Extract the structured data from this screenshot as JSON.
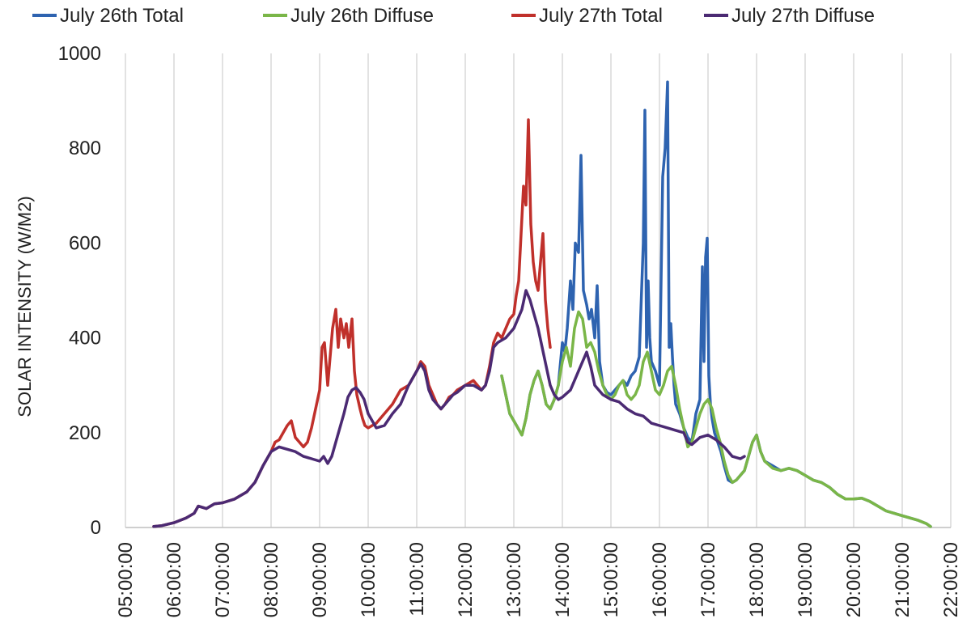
{
  "chart_data": {
    "type": "line",
    "title": "",
    "xlabel": "",
    "ylabel": "SOLAR INTENSITY (W/M2)",
    "ylim": [
      0,
      1000
    ],
    "yticks": [
      0,
      200,
      400,
      600,
      800,
      1000
    ],
    "xlim": [
      "05:00:00",
      "22:00:00"
    ],
    "xticks": [
      "05:00:00",
      "06:00:00",
      "07:00:00",
      "08:00:00",
      "09:00:00",
      "10:00:00",
      "11:00:00",
      "12:00:00",
      "13:00:00",
      "14:00:00",
      "15:00:00",
      "16:00:00",
      "17:00:00",
      "18:00:00",
      "19:00:00",
      "20:00:00",
      "21:00:00",
      "22:00:00"
    ],
    "grid": "vertical",
    "legend_position": "top",
    "series": [
      {
        "name": "July 26th Total",
        "color": "#2e63b0",
        "x": [
          "12:45:00",
          "12:50:00",
          "12:55:00",
          "13:00:00",
          "13:05:00",
          "13:10:00",
          "13:15:00",
          "13:20:00",
          "13:25:00",
          "13:30:00",
          "13:35:00",
          "13:40:00",
          "13:45:00",
          "13:50:00",
          "13:55:00",
          "14:00:00",
          "14:03:00",
          "14:06:00",
          "14:10:00",
          "14:13:00",
          "14:16:00",
          "14:20:00",
          "14:23:00",
          "14:26:00",
          "14:30:00",
          "14:33:00",
          "14:36:00",
          "14:40:00",
          "14:43:00",
          "14:46:00",
          "14:50:00",
          "14:55:00",
          "15:00:00",
          "15:05:00",
          "15:10:00",
          "15:15:00",
          "15:20:00",
          "15:25:00",
          "15:30:00",
          "15:35:00",
          "15:40:00",
          "15:42:00",
          "15:44:00",
          "15:46:00",
          "15:48:00",
          "15:50:00",
          "15:55:00",
          "16:00:00",
          "16:04:00",
          "16:07:00",
          "16:10:00",
          "16:12:00",
          "16:14:00",
          "16:16:00",
          "16:18:00",
          "16:20:00",
          "16:25:00",
          "16:30:00",
          "16:35:00",
          "16:40:00",
          "16:45:00",
          "16:50:00",
          "16:53:00",
          "16:55:00",
          "16:57:00",
          "16:59:00",
          "17:01:00",
          "17:03:00",
          "17:05:00",
          "17:08:00",
          "17:12:00",
          "17:16:00",
          "17:20:00",
          "17:25:00",
          "17:30:00",
          "17:35:00",
          "17:40:00",
          "17:45:00",
          "17:50:00",
          "17:55:00",
          "18:00:00",
          "18:05:00",
          "18:10:00",
          "18:20:00",
          "18:30:00",
          "18:40:00",
          "18:50:00",
          "19:00:00",
          "19:10:00",
          "19:20:00",
          "19:30:00",
          "19:40:00",
          "19:50:00",
          "20:00:00",
          "20:10:00",
          "20:20:00",
          "20:30:00",
          "20:40:00",
          "20:50:00",
          "21:00:00",
          "21:10:00",
          "21:20:00",
          "21:30:00",
          "21:35:00"
        ],
        "values": [
          320,
          280,
          240,
          225,
          210,
          195,
          230,
          280,
          310,
          330,
          300,
          260,
          250,
          270,
          300,
          390,
          370,
          420,
          520,
          460,
          600,
          580,
          785,
          500,
          470,
          440,
          460,
          400,
          510,
          350,
          300,
          285,
          280,
          290,
          300,
          310,
          300,
          320,
          330,
          360,
          600,
          880,
          380,
          520,
          400,
          350,
          330,
          300,
          740,
          800,
          940,
          380,
          430,
          360,
          300,
          260,
          240,
          210,
          190,
          180,
          240,
          270,
          550,
          350,
          570,
          610,
          320,
          260,
          230,
          200,
          180,
          160,
          130,
          100,
          95,
          100,
          110,
          120,
          150,
          180,
          195,
          160,
          140,
          130,
          120,
          125,
          120,
          110,
          100,
          95,
          85,
          70,
          60,
          60,
          62,
          55,
          45,
          35,
          30,
          25,
          20,
          15,
          8,
          2
        ]
      },
      {
        "name": "July 26th Diffuse",
        "color": "#7ab648",
        "x": [
          "12:45:00",
          "12:50:00",
          "12:55:00",
          "13:00:00",
          "13:05:00",
          "13:10:00",
          "13:15:00",
          "13:20:00",
          "13:25:00",
          "13:30:00",
          "13:35:00",
          "13:40:00",
          "13:45:00",
          "13:50:00",
          "13:55:00",
          "14:00:00",
          "14:05:00",
          "14:10:00",
          "14:15:00",
          "14:20:00",
          "14:25:00",
          "14:30:00",
          "14:35:00",
          "14:40:00",
          "14:45:00",
          "14:50:00",
          "14:55:00",
          "15:00:00",
          "15:05:00",
          "15:10:00",
          "15:15:00",
          "15:20:00",
          "15:25:00",
          "15:30:00",
          "15:35:00",
          "15:40:00",
          "15:45:00",
          "15:50:00",
          "15:55:00",
          "16:00:00",
          "16:05:00",
          "16:10:00",
          "16:15:00",
          "16:20:00",
          "16:25:00",
          "16:30:00",
          "16:35:00",
          "16:40:00",
          "16:45:00",
          "16:50:00",
          "16:55:00",
          "17:00:00",
          "17:05:00",
          "17:10:00",
          "17:15:00",
          "17:20:00",
          "17:25:00",
          "17:30:00",
          "17:35:00",
          "17:40:00",
          "17:45:00",
          "17:50:00",
          "17:55:00",
          "18:00:00",
          "18:05:00",
          "18:10:00",
          "18:20:00",
          "18:30:00",
          "18:40:00",
          "18:50:00",
          "19:00:00",
          "19:10:00",
          "19:20:00",
          "19:30:00",
          "19:40:00",
          "19:50:00",
          "20:00:00",
          "20:10:00",
          "20:20:00",
          "20:30:00",
          "20:40:00",
          "20:50:00",
          "21:00:00",
          "21:10:00",
          "21:20:00",
          "21:30:00",
          "21:35:00"
        ],
        "values": [
          320,
          280,
          240,
          225,
          210,
          195,
          230,
          280,
          310,
          330,
          300,
          260,
          250,
          270,
          300,
          350,
          380,
          340,
          420,
          455,
          440,
          380,
          390,
          370,
          330,
          300,
          280,
          270,
          280,
          300,
          310,
          280,
          270,
          280,
          300,
          350,
          370,
          330,
          290,
          280,
          300,
          330,
          340,
          300,
          250,
          210,
          170,
          180,
          210,
          240,
          260,
          270,
          250,
          210,
          180,
          140,
          110,
          95,
          100,
          110,
          120,
          150,
          180,
          195,
          160,
          140,
          125,
          120,
          125,
          120,
          110,
          100,
          95,
          85,
          70,
          60,
          60,
          62,
          55,
          45,
          35,
          30,
          25,
          20,
          15,
          8,
          2
        ]
      },
      {
        "name": "July 27th Total",
        "color": "#c0302b",
        "x": [
          "05:35:00",
          "05:45:00",
          "06:00:00",
          "06:15:00",
          "06:25:00",
          "06:30:00",
          "06:40:00",
          "06:50:00",
          "07:00:00",
          "07:15:00",
          "07:30:00",
          "07:40:00",
          "07:50:00",
          "08:00:00",
          "08:05:00",
          "08:10:00",
          "08:15:00",
          "08:20:00",
          "08:25:00",
          "08:30:00",
          "08:35:00",
          "08:40:00",
          "08:45:00",
          "08:50:00",
          "08:55:00",
          "09:00:00",
          "09:03:00",
          "09:06:00",
          "09:10:00",
          "09:13:00",
          "09:16:00",
          "09:20:00",
          "09:23:00",
          "09:26:00",
          "09:30:00",
          "09:33:00",
          "09:36:00",
          "09:40:00",
          "09:43:00",
          "09:46:00",
          "09:50:00",
          "09:53:00",
          "09:56:00",
          "10:00:00",
          "10:10:00",
          "10:20:00",
          "10:30:00",
          "10:40:00",
          "10:50:00",
          "11:00:00",
          "11:05:00",
          "11:10:00",
          "11:15:00",
          "11:20:00",
          "11:25:00",
          "11:30:00",
          "11:35:00",
          "11:40:00",
          "11:45:00",
          "11:50:00",
          "12:00:00",
          "12:10:00",
          "12:20:00",
          "12:25:00",
          "12:30:00",
          "12:35:00",
          "12:40:00",
          "12:45:00",
          "12:50:00",
          "12:55:00",
          "13:00:00",
          "13:03:00",
          "13:06:00",
          "13:09:00",
          "13:12:00",
          "13:15:00",
          "13:18:00",
          "13:21:00",
          "13:24:00",
          "13:27:00",
          "13:30:00",
          "13:33:00",
          "13:36:00",
          "13:39:00",
          "13:42:00",
          "13:45:00"
        ],
        "values": [
          2,
          4,
          10,
          20,
          30,
          45,
          40,
          50,
          52,
          60,
          75,
          95,
          130,
          160,
          180,
          185,
          200,
          215,
          225,
          190,
          180,
          170,
          180,
          210,
          250,
          290,
          380,
          390,
          300,
          360,
          420,
          460,
          380,
          440,
          400,
          430,
          380,
          440,
          330,
          280,
          250,
          230,
          215,
          210,
          220,
          240,
          260,
          290,
          300,
          330,
          350,
          340,
          300,
          280,
          260,
          250,
          260,
          275,
          280,
          290,
          300,
          310,
          290,
          300,
          340,
          390,
          410,
          400,
          420,
          440,
          450,
          490,
          520,
          620,
          720,
          680,
          860,
          640,
          560,
          520,
          500,
          560,
          620,
          480,
          420,
          380
        ]
      },
      {
        "name": "July 27th Diffuse",
        "color": "#4b2a73",
        "x": [
          "05:35:00",
          "05:45:00",
          "06:00:00",
          "06:15:00",
          "06:25:00",
          "06:30:00",
          "06:40:00",
          "06:50:00",
          "07:00:00",
          "07:15:00",
          "07:30:00",
          "07:40:00",
          "07:50:00",
          "08:00:00",
          "08:10:00",
          "08:20:00",
          "08:30:00",
          "08:40:00",
          "08:50:00",
          "09:00:00",
          "09:05:00",
          "09:10:00",
          "09:15:00",
          "09:20:00",
          "09:25:00",
          "09:30:00",
          "09:35:00",
          "09:40:00",
          "09:45:00",
          "09:50:00",
          "09:55:00",
          "10:00:00",
          "10:10:00",
          "10:20:00",
          "10:30:00",
          "10:40:00",
          "10:50:00",
          "11:00:00",
          "11:05:00",
          "11:10:00",
          "11:15:00",
          "11:20:00",
          "11:25:00",
          "11:30:00",
          "11:35:00",
          "11:40:00",
          "11:45:00",
          "11:50:00",
          "12:00:00",
          "12:10:00",
          "12:20:00",
          "12:25:00",
          "12:30:00",
          "12:35:00",
          "12:40:00",
          "12:45:00",
          "12:50:00",
          "12:55:00",
          "13:00:00",
          "13:05:00",
          "13:10:00",
          "13:15:00",
          "13:20:00",
          "13:25:00",
          "13:30:00",
          "13:35:00",
          "13:40:00",
          "13:45:00",
          "13:50:00",
          "13:55:00",
          "14:00:00",
          "14:10:00",
          "14:20:00",
          "14:30:00",
          "14:35:00",
          "14:40:00",
          "14:45:00",
          "14:50:00",
          "15:00:00",
          "15:10:00",
          "15:20:00",
          "15:30:00",
          "15:40:00",
          "15:50:00",
          "16:00:00",
          "16:10:00",
          "16:20:00",
          "16:30:00",
          "16:35:00",
          "16:40:00",
          "16:50:00",
          "17:00:00",
          "17:10:00",
          "17:20:00",
          "17:30:00",
          "17:40:00",
          "17:45:00"
        ],
        "values": [
          2,
          4,
          10,
          20,
          30,
          45,
          40,
          50,
          52,
          60,
          75,
          95,
          130,
          160,
          170,
          165,
          160,
          150,
          145,
          140,
          150,
          135,
          150,
          180,
          210,
          240,
          275,
          290,
          295,
          285,
          270,
          240,
          210,
          215,
          240,
          260,
          300,
          330,
          345,
          330,
          290,
          270,
          260,
          250,
          260,
          270,
          280,
          285,
          300,
          300,
          290,
          300,
          330,
          380,
          390,
          395,
          400,
          410,
          420,
          440,
          460,
          500,
          480,
          450,
          420,
          380,
          340,
          300,
          280,
          270,
          275,
          290,
          330,
          370,
          340,
          300,
          290,
          280,
          270,
          265,
          250,
          240,
          235,
          220,
          215,
          210,
          205,
          200,
          180,
          175,
          190,
          195,
          185,
          170,
          150,
          145,
          150
        ]
      }
    ]
  }
}
